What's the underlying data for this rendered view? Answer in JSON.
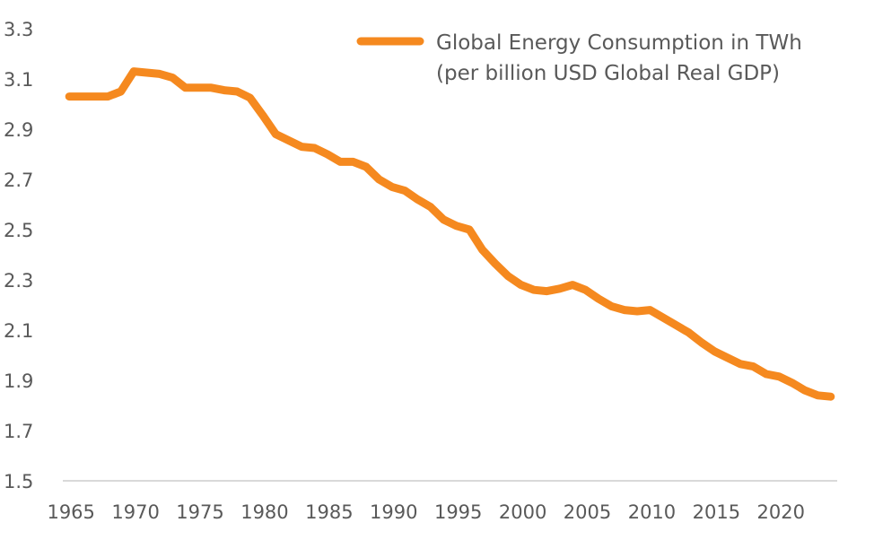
{
  "chart_data": {
    "type": "line",
    "title": "",
    "xlabel": "",
    "ylabel": "",
    "ylim": [
      1.5,
      3.3
    ],
    "yticks": [
      "3.3",
      "3.1",
      "2.9",
      "2.7",
      "2.5",
      "2.3",
      "2.1",
      "1.9",
      "1.7",
      "1.5"
    ],
    "xtick_labels": [
      "1965",
      "1970",
      "1975",
      "1980",
      "1985",
      "1990",
      "1995",
      "2000",
      "2005",
      "2010",
      "2015",
      "2020"
    ],
    "grid": false,
    "legend": {
      "placement": "top-right",
      "lines": [
        "Global Energy Consumption in TWh",
        "(per billion USD Global Real GDP)"
      ]
    },
    "x": [
      1965,
      1966,
      1967,
      1968,
      1969,
      1970,
      1971,
      1972,
      1973,
      1974,
      1975,
      1976,
      1977,
      1978,
      1979,
      1980,
      1981,
      1982,
      1983,
      1984,
      1985,
      1986,
      1987,
      1988,
      1989,
      1990,
      1991,
      1992,
      1993,
      1994,
      1995,
      1996,
      1997,
      1998,
      1999,
      2000,
      2001,
      2002,
      2003,
      2004,
      2005,
      2006,
      2007,
      2008,
      2009,
      2010,
      2011,
      2012,
      2013,
      2014,
      2015,
      2016,
      2017,
      2018,
      2019,
      2020,
      2021,
      2022,
      2023,
      2024
    ],
    "series": [
      {
        "name": "Global Energy Consumption in TWh (per billion USD Global Real GDP)",
        "color": "#F5891F",
        "values": [
          3.03,
          3.03,
          3.03,
          3.03,
          3.05,
          3.13,
          3.125,
          3.12,
          3.105,
          3.065,
          3.065,
          3.065,
          3.055,
          3.05,
          3.025,
          2.955,
          2.88,
          2.855,
          2.83,
          2.825,
          2.8,
          2.77,
          2.77,
          2.75,
          2.7,
          2.67,
          2.655,
          2.62,
          2.59,
          2.54,
          2.515,
          2.5,
          2.42,
          2.365,
          2.315,
          2.28,
          2.26,
          2.255,
          2.265,
          2.28,
          2.26,
          2.225,
          2.195,
          2.18,
          2.175,
          2.18,
          2.15,
          2.12,
          2.09,
          2.05,
          2.015,
          1.99,
          1.965,
          1.955,
          1.925,
          1.915,
          1.89,
          1.86,
          1.84,
          1.835
        ]
      }
    ]
  }
}
